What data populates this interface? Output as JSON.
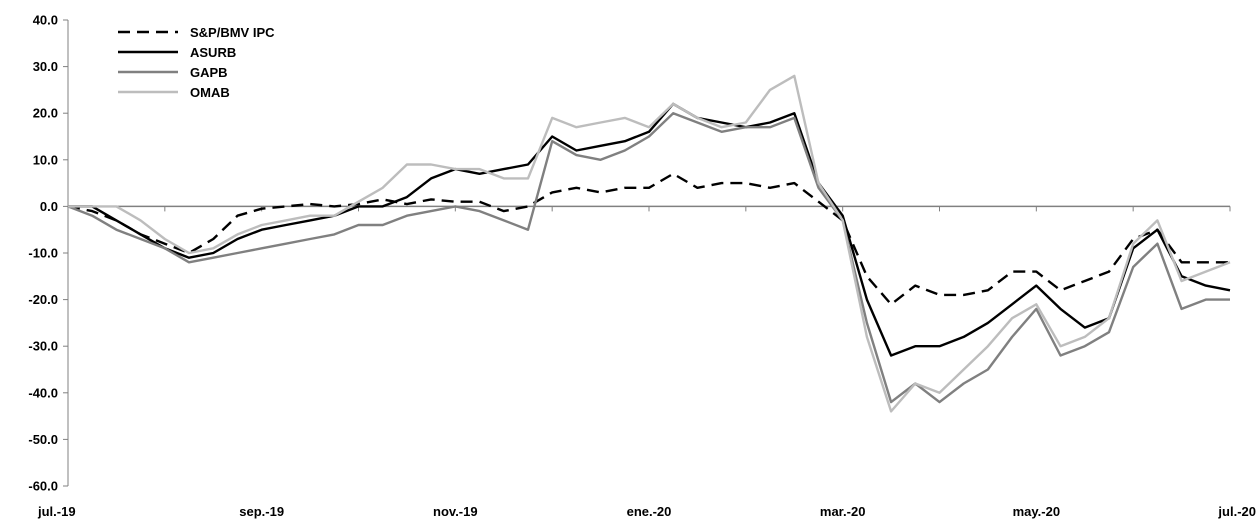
{
  "chart_data": {
    "type": "line",
    "title": "",
    "xlabel": "",
    "ylabel": "",
    "ylim": [
      -60,
      40
    ],
    "y_ticks": [
      "40.0",
      "30.0",
      "20.0",
      "10.0",
      "0.0",
      "-10.0",
      "-20.0",
      "-30.0",
      "-40.0",
      "-50.0",
      "-60.0"
    ],
    "x_ticks": [
      "jul.-19",
      "sep.-19",
      "nov.-19",
      "ene.-20",
      "mar.-20",
      "may.-20",
      "jul.-20"
    ],
    "x_range": [
      0,
      12
    ],
    "legend_position": "top-left",
    "grid": false,
    "series": [
      {
        "name": "S&P/BMV IPC",
        "color": "#000000",
        "dash": "dashed",
        "points": [
          [
            0,
            0
          ],
          [
            0.25,
            -1
          ],
          [
            0.5,
            -3
          ],
          [
            0.75,
            -6
          ],
          [
            1.0,
            -8
          ],
          [
            1.25,
            -10
          ],
          [
            1.5,
            -7
          ],
          [
            1.75,
            -2
          ],
          [
            2.0,
            -0.5
          ],
          [
            2.25,
            0
          ],
          [
            2.5,
            0.5
          ],
          [
            2.75,
            0
          ],
          [
            3.0,
            0.5
          ],
          [
            3.25,
            1.5
          ],
          [
            3.5,
            0.5
          ],
          [
            3.75,
            1.5
          ],
          [
            4.0,
            1
          ],
          [
            4.25,
            1
          ],
          [
            4.5,
            -1
          ],
          [
            4.75,
            0
          ],
          [
            5.0,
            3
          ],
          [
            5.25,
            4
          ],
          [
            5.5,
            3
          ],
          [
            5.75,
            4
          ],
          [
            6.0,
            4
          ],
          [
            6.25,
            7
          ],
          [
            6.5,
            4
          ],
          [
            6.75,
            5
          ],
          [
            7.0,
            5
          ],
          [
            7.25,
            4
          ],
          [
            7.5,
            5
          ],
          [
            7.75,
            1
          ],
          [
            8.0,
            -3
          ],
          [
            8.25,
            -15
          ],
          [
            8.5,
            -21
          ],
          [
            8.75,
            -17
          ],
          [
            9.0,
            -19
          ],
          [
            9.25,
            -19
          ],
          [
            9.5,
            -18
          ],
          [
            9.75,
            -14
          ],
          [
            10.0,
            -14
          ],
          [
            10.25,
            -18
          ],
          [
            10.5,
            -16
          ],
          [
            10.75,
            -14
          ],
          [
            11.0,
            -7
          ],
          [
            11.25,
            -5
          ],
          [
            11.5,
            -12
          ],
          [
            11.75,
            -12
          ],
          [
            12.0,
            -12
          ]
        ]
      },
      {
        "name": "ASURB",
        "color": "#000000",
        "dash": "solid",
        "points": [
          [
            0,
            0
          ],
          [
            0.25,
            0
          ],
          [
            0.5,
            -3
          ],
          [
            0.75,
            -6
          ],
          [
            1.0,
            -9
          ],
          [
            1.25,
            -11
          ],
          [
            1.5,
            -10
          ],
          [
            1.75,
            -7
          ],
          [
            2.0,
            -5
          ],
          [
            2.25,
            -4
          ],
          [
            2.5,
            -3
          ],
          [
            2.75,
            -2
          ],
          [
            3.0,
            0
          ],
          [
            3.25,
            0
          ],
          [
            3.5,
            2
          ],
          [
            3.75,
            6
          ],
          [
            4.0,
            8
          ],
          [
            4.25,
            7
          ],
          [
            4.5,
            8
          ],
          [
            4.75,
            9
          ],
          [
            5.0,
            15
          ],
          [
            5.25,
            12
          ],
          [
            5.5,
            13
          ],
          [
            5.75,
            14
          ],
          [
            6.0,
            16
          ],
          [
            6.25,
            22
          ],
          [
            6.5,
            19
          ],
          [
            6.75,
            18
          ],
          [
            7.0,
            17
          ],
          [
            7.25,
            18
          ],
          [
            7.5,
            20
          ],
          [
            7.75,
            5
          ],
          [
            8.0,
            -2
          ],
          [
            8.25,
            -20
          ],
          [
            8.5,
            -32
          ],
          [
            8.75,
            -30
          ],
          [
            9.0,
            -30
          ],
          [
            9.25,
            -28
          ],
          [
            9.5,
            -25
          ],
          [
            9.75,
            -21
          ],
          [
            10.0,
            -17
          ],
          [
            10.25,
            -22
          ],
          [
            10.5,
            -26
          ],
          [
            10.75,
            -24
          ],
          [
            11.0,
            -9
          ],
          [
            11.25,
            -5
          ],
          [
            11.5,
            -15
          ],
          [
            11.75,
            -17
          ],
          [
            12.0,
            -18
          ]
        ]
      },
      {
        "name": "GAPB",
        "color": "#808080",
        "dash": "solid",
        "points": [
          [
            0,
            0
          ],
          [
            0.25,
            -2
          ],
          [
            0.5,
            -5
          ],
          [
            0.75,
            -7
          ],
          [
            1.0,
            -9
          ],
          [
            1.25,
            -12
          ],
          [
            1.5,
            -11
          ],
          [
            1.75,
            -10
          ],
          [
            2.0,
            -9
          ],
          [
            2.25,
            -8
          ],
          [
            2.5,
            -7
          ],
          [
            2.75,
            -6
          ],
          [
            3.0,
            -4
          ],
          [
            3.25,
            -4
          ],
          [
            3.5,
            -2
          ],
          [
            3.75,
            -1
          ],
          [
            4.0,
            0
          ],
          [
            4.25,
            -1
          ],
          [
            4.5,
            -3
          ],
          [
            4.75,
            -5
          ],
          [
            5.0,
            14
          ],
          [
            5.25,
            11
          ],
          [
            5.5,
            10
          ],
          [
            5.75,
            12
          ],
          [
            6.0,
            15
          ],
          [
            6.25,
            20
          ],
          [
            6.5,
            18
          ],
          [
            6.75,
            16
          ],
          [
            7.0,
            17
          ],
          [
            7.25,
            17
          ],
          [
            7.5,
            19
          ],
          [
            7.75,
            4
          ],
          [
            8.0,
            -3
          ],
          [
            8.25,
            -25
          ],
          [
            8.5,
            -42
          ],
          [
            8.75,
            -38
          ],
          [
            9.0,
            -42
          ],
          [
            9.25,
            -38
          ],
          [
            9.5,
            -35
          ],
          [
            9.75,
            -28
          ],
          [
            10.0,
            -22
          ],
          [
            10.25,
            -32
          ],
          [
            10.5,
            -30
          ],
          [
            10.75,
            -27
          ],
          [
            11.0,
            -13
          ],
          [
            11.25,
            -8
          ],
          [
            11.5,
            -22
          ],
          [
            11.75,
            -20
          ],
          [
            12.0,
            -20
          ]
        ]
      },
      {
        "name": "OMAB",
        "color": "#bdbdbd",
        "dash": "solid",
        "points": [
          [
            0,
            0
          ],
          [
            0.25,
            0
          ],
          [
            0.5,
            0
          ],
          [
            0.75,
            -3
          ],
          [
            1.0,
            -7
          ],
          [
            1.25,
            -10
          ],
          [
            1.5,
            -9
          ],
          [
            1.75,
            -6
          ],
          [
            2.0,
            -4
          ],
          [
            2.25,
            -3
          ],
          [
            2.5,
            -2
          ],
          [
            2.75,
            -2
          ],
          [
            3.0,
            1
          ],
          [
            3.25,
            4
          ],
          [
            3.5,
            9
          ],
          [
            3.75,
            9
          ],
          [
            4.0,
            8
          ],
          [
            4.25,
            8
          ],
          [
            4.5,
            6
          ],
          [
            4.75,
            6
          ],
          [
            5.0,
            19
          ],
          [
            5.25,
            17
          ],
          [
            5.5,
            18
          ],
          [
            5.75,
            19
          ],
          [
            6.0,
            17
          ],
          [
            6.25,
            22
          ],
          [
            6.5,
            19
          ],
          [
            6.75,
            17
          ],
          [
            7.0,
            18
          ],
          [
            7.25,
            25
          ],
          [
            7.5,
            28
          ],
          [
            7.75,
            5
          ],
          [
            8.0,
            -3
          ],
          [
            8.25,
            -28
          ],
          [
            8.5,
            -44
          ],
          [
            8.75,
            -38
          ],
          [
            9.0,
            -40
          ],
          [
            9.25,
            -35
          ],
          [
            9.5,
            -30
          ],
          [
            9.75,
            -24
          ],
          [
            10.0,
            -21
          ],
          [
            10.25,
            -30
          ],
          [
            10.5,
            -28
          ],
          [
            10.75,
            -24
          ],
          [
            11.0,
            -8
          ],
          [
            11.25,
            -3
          ],
          [
            11.5,
            -16
          ],
          [
            11.75,
            -14
          ],
          [
            12.0,
            -12
          ]
        ]
      }
    ]
  }
}
